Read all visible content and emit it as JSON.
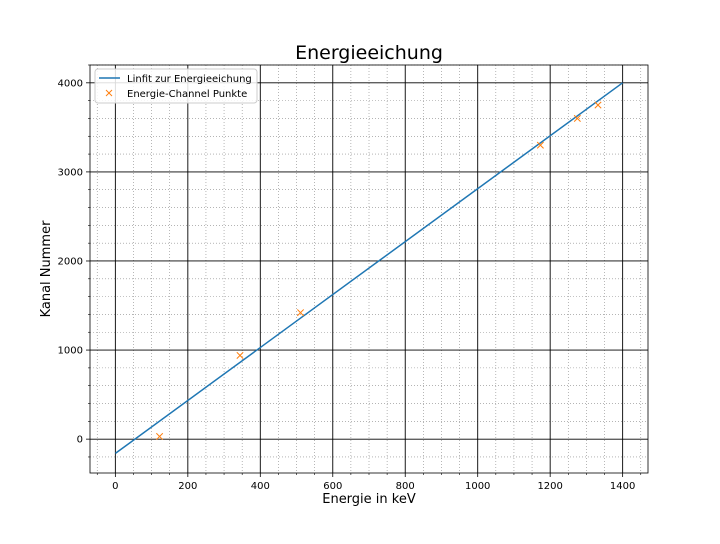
{
  "chart_data": {
    "type": "line",
    "title": "Energieeichung",
    "xlabel": "Energie in keV",
    "ylabel": "Kanal Nummer",
    "xlim": [
      -70,
      1470
    ],
    "ylim": [
      -380,
      4200
    ],
    "xticks": [
      0,
      200,
      400,
      600,
      800,
      1000,
      1200,
      1400
    ],
    "yticks": [
      0,
      1000,
      2000,
      3000,
      4000
    ],
    "grid": true,
    "minor_grid": true,
    "legend_position": "upper left",
    "series": [
      {
        "name": "Linfit zur Energieeichung",
        "kind": "line",
        "color": "#1f77b4",
        "x": [
          0,
          1400
        ],
        "y": [
          -160,
          4000
        ]
      },
      {
        "name": "Energie-Channel Punkte",
        "kind": "scatter",
        "marker": "x",
        "color": "#ff7f0e",
        "x": [
          122,
          344,
          511,
          1173,
          1275,
          1332
        ],
        "y": [
          30,
          940,
          1420,
          3300,
          3600,
          3750
        ]
      }
    ]
  }
}
